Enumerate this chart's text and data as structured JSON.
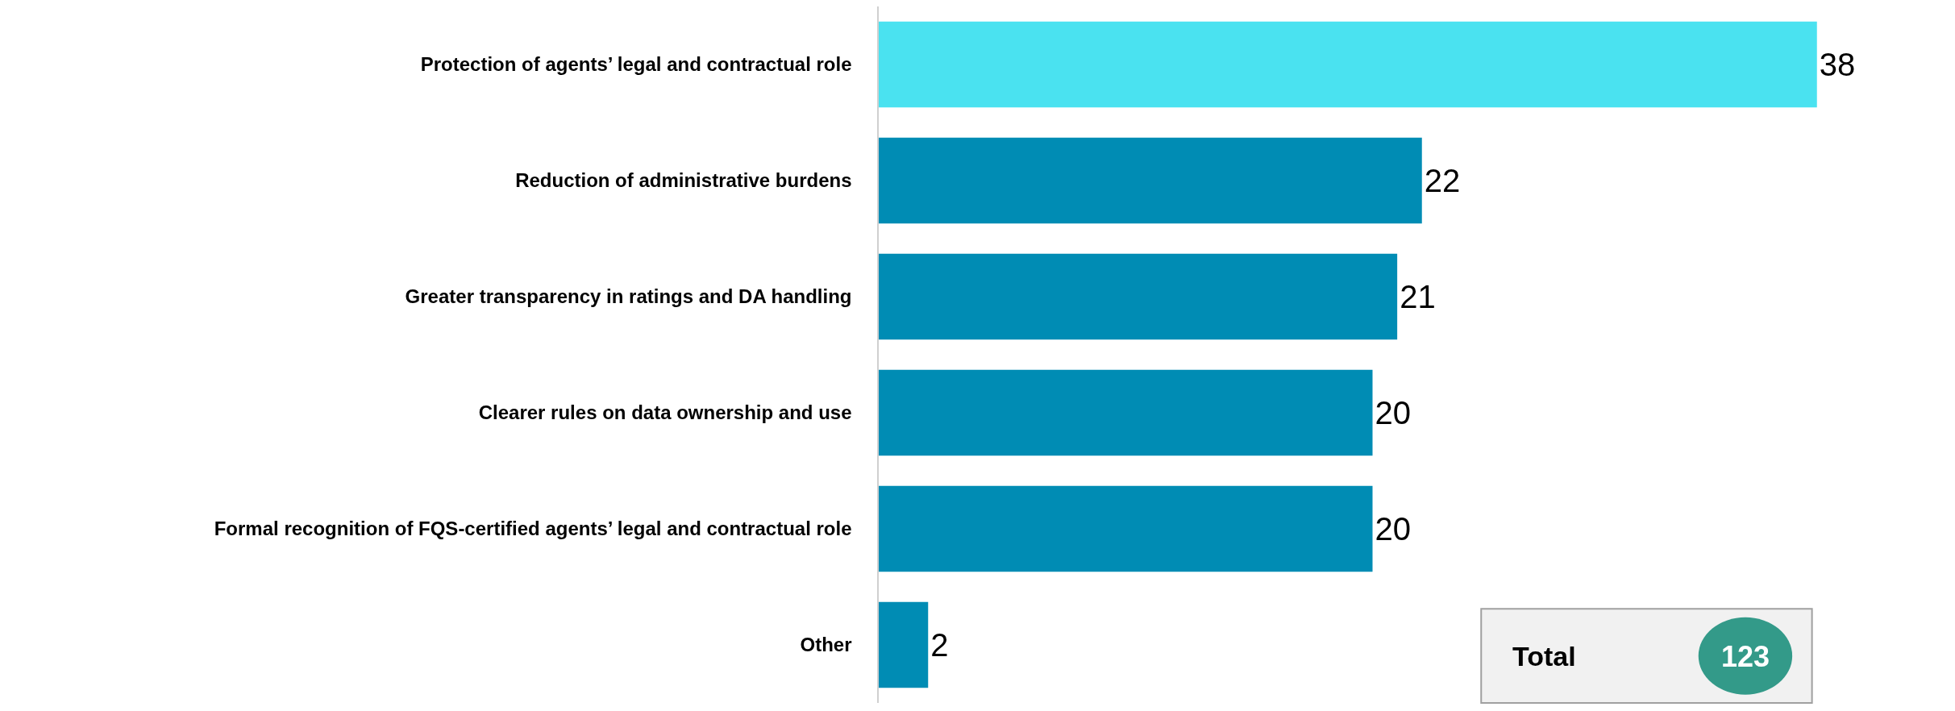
{
  "chart_data": {
    "type": "bar",
    "orientation": "horizontal",
    "categories": [
      "Protection of agents’ legal and contractual role",
      "Reduction of administrative burdens",
      "Greater transparency in ratings and DA handling",
      "Clearer rules on data ownership and use",
      "Formal recognition of FQS-certified agents’ legal and contractual role",
      "Other"
    ],
    "values": [
      38,
      22,
      21,
      20,
      20,
      2
    ],
    "colors": [
      "#4ae2f0",
      "#008cb4",
      "#008cb4",
      "#008cb4",
      "#008cb4",
      "#008cb4"
    ],
    "data_labels": true,
    "tick_labels": "y",
    "annotations": [
      "Total",
      "123"
    ]
  }
}
